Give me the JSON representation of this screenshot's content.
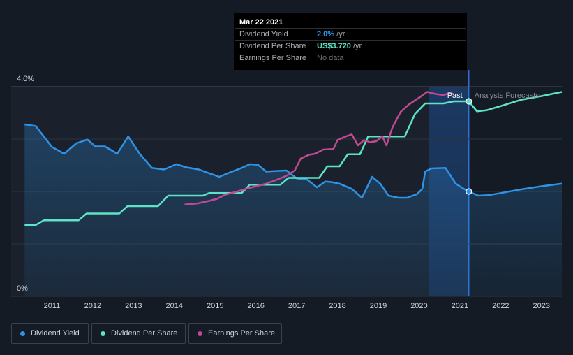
{
  "chart_data": {
    "type": "line",
    "yaxis": {
      "ticks": [
        "4.0%",
        "0%"
      ],
      "ylim": [
        0,
        4.0
      ],
      "gridlines": [
        0,
        1,
        2,
        3,
        4
      ]
    },
    "xaxis": {
      "ticks": [
        "2011",
        "2012",
        "2013",
        "2014",
        "2015",
        "2016",
        "2017",
        "2018",
        "2019",
        "2020",
        "2021",
        "2022",
        "2023"
      ],
      "xlim": [
        2010.0,
        2023.5
      ]
    },
    "colors": {
      "dividend_yield": "#2e93e6",
      "dividend_per_share": "#5de4c7",
      "earnings_per_share": "#c04a92",
      "background": "#151b24",
      "past_region": "#1a212c",
      "highlight": "#1b3a66"
    },
    "past_label": "Past",
    "forecast_label": "Analysts Forecasts",
    "marker_x": 2021.22,
    "series": [
      {
        "name": "Dividend Yield",
        "key": "dividend_yield",
        "x": [
          2010.33,
          2010.6,
          2010.75,
          2011.0,
          2011.3,
          2011.6,
          2011.87,
          2012.06,
          2012.3,
          2012.6,
          2012.87,
          2013.15,
          2013.45,
          2013.75,
          2014.05,
          2014.3,
          2014.6,
          2014.85,
          2015.1,
          2015.35,
          2015.65,
          2015.85,
          2016.05,
          2016.25,
          2016.45,
          2016.75,
          2017.0,
          2017.25,
          2017.5,
          2017.7,
          2017.85,
          2018.05,
          2018.35,
          2018.6,
          2018.85,
          2019.05,
          2019.25,
          2019.5,
          2019.7,
          2019.95,
          2020.08,
          2020.15,
          2020.3,
          2020.65,
          2020.9,
          2021.1,
          2021.22,
          2021.45,
          2021.7,
          2022.0,
          2022.5,
          2023.0,
          2023.5
        ],
        "values": [
          3.28,
          3.25,
          3.1,
          2.85,
          2.72,
          2.92,
          2.99,
          2.86,
          2.86,
          2.72,
          3.05,
          2.72,
          2.45,
          2.42,
          2.52,
          2.46,
          2.42,
          2.35,
          2.28,
          2.36,
          2.45,
          2.52,
          2.51,
          2.38,
          2.39,
          2.4,
          2.25,
          2.23,
          2.08,
          2.19,
          2.18,
          2.15,
          2.05,
          1.88,
          2.28,
          2.15,
          1.92,
          1.88,
          1.88,
          1.95,
          2.05,
          2.38,
          2.44,
          2.45,
          2.15,
          2.05,
          2.0,
          1.92,
          1.93,
          1.97,
          2.04,
          2.1,
          2.15
        ]
      },
      {
        "name": "Dividend Per Share",
        "key": "dividend_per_share",
        "x": [
          2010.33,
          2010.6,
          2010.8,
          2011.0,
          2011.65,
          2011.85,
          2012.65,
          2012.85,
          2013.6,
          2013.85,
          2014.7,
          2014.85,
          2015.65,
          2015.85,
          2016.6,
          2016.8,
          2017.55,
          2017.75,
          2018.05,
          2018.25,
          2018.55,
          2018.75,
          2019.65,
          2019.9,
          2020.15,
          2020.6,
          2020.85,
          2021.22,
          2021.42,
          2021.65,
          2022.0,
          2022.5,
          2023.0,
          2023.5
        ],
        "values": [
          1.36,
          1.36,
          1.45,
          1.45,
          1.45,
          1.58,
          1.58,
          1.72,
          1.72,
          1.92,
          1.92,
          1.97,
          1.97,
          2.13,
          2.13,
          2.26,
          2.26,
          2.48,
          2.48,
          2.71,
          2.71,
          3.05,
          3.05,
          3.48,
          3.68,
          3.68,
          3.72,
          3.72,
          3.53,
          3.55,
          3.63,
          3.75,
          3.82,
          3.9
        ]
      },
      {
        "name": "Earnings Per Share",
        "key": "earnings_per_share",
        "x": [
          2014.25,
          2014.55,
          2014.85,
          2015.05,
          2015.25,
          2015.5,
          2015.75,
          2016.0,
          2016.25,
          2016.5,
          2016.75,
          2016.95,
          2017.1,
          2017.3,
          2017.45,
          2017.65,
          2017.9,
          2018.0,
          2018.2,
          2018.35,
          2018.5,
          2018.65,
          2018.8,
          2018.95,
          2019.1,
          2019.2,
          2019.35,
          2019.55,
          2019.75,
          2020.0,
          2020.2,
          2020.4,
          2020.6,
          2020.75,
          2020.85
        ],
        "values": [
          1.75,
          1.77,
          1.82,
          1.86,
          1.94,
          1.99,
          2.05,
          2.1,
          2.15,
          2.22,
          2.3,
          2.4,
          2.63,
          2.7,
          2.72,
          2.8,
          2.81,
          2.98,
          3.05,
          3.09,
          2.88,
          2.98,
          2.94,
          2.96,
          3.05,
          2.88,
          3.23,
          3.52,
          3.66,
          3.79,
          3.9,
          3.86,
          3.84,
          3.88,
          3.86
        ]
      }
    ]
  },
  "tooltip": {
    "date": "Mar 22 2021",
    "rows": [
      {
        "label": "Dividend Yield",
        "value": "2.0%",
        "unit": " /yr"
      },
      {
        "label": "Dividend Per Share",
        "value": "US$3.720",
        "unit": " /yr"
      },
      {
        "label": "Earnings Per Share",
        "value": "No data",
        "unit": ""
      }
    ]
  },
  "legend": [
    {
      "label": "Dividend Yield"
    },
    {
      "label": "Dividend Per Share"
    },
    {
      "label": "Earnings Per Share"
    }
  ]
}
